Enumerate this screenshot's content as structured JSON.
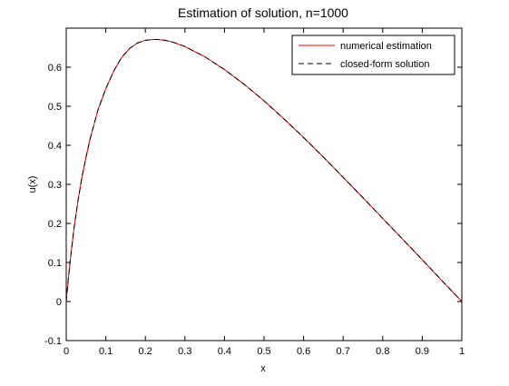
{
  "chart_data": {
    "type": "line",
    "title": "Estimation of solution, n=1000",
    "xlabel": "x",
    "ylabel": "u(x)",
    "xlim": [
      0,
      1
    ],
    "ylim": [
      -0.1,
      0.7
    ],
    "x_ticks": [
      "0",
      "0.1",
      "0.2",
      "0.3",
      "0.4",
      "0.5",
      "0.6",
      "0.7",
      "0.8",
      "0.9",
      "1"
    ],
    "y_ticks": [
      "-0.1",
      "0",
      "0.1",
      "0.2",
      "0.3",
      "0.4",
      "0.5",
      "0.6"
    ],
    "grid": false,
    "legend_position": "top-right",
    "x": [
      0,
      0.005,
      0.01,
      0.02,
      0.03,
      0.04,
      0.05,
      0.06,
      0.08,
      0.1,
      0.12,
      0.14,
      0.16,
      0.18,
      0.2,
      0.22,
      0.23,
      0.25,
      0.27,
      0.3,
      0.35,
      0.4,
      0.45,
      0.5,
      0.55,
      0.6,
      0.65,
      0.7,
      0.75,
      0.8,
      0.85,
      0.9,
      0.95,
      1.0
    ],
    "series": [
      {
        "name": "numerical estimation",
        "color": "#ff0000",
        "dash": "solid",
        "values": [
          0,
          0.055,
          0.105,
          0.19,
          0.26,
          0.32,
          0.37,
          0.415,
          0.49,
          0.545,
          0.59,
          0.625,
          0.648,
          0.662,
          0.669,
          0.671,
          0.671,
          0.669,
          0.664,
          0.653,
          0.627,
          0.594,
          0.556,
          0.514,
          0.468,
          0.42,
          0.37,
          0.318,
          0.266,
          0.213,
          0.16,
          0.107,
          0.053,
          0
        ]
      },
      {
        "name": "closed-form solution",
        "color": "#000000",
        "dash": "dashed",
        "values": [
          0,
          0.055,
          0.105,
          0.19,
          0.26,
          0.32,
          0.37,
          0.415,
          0.49,
          0.545,
          0.59,
          0.625,
          0.648,
          0.662,
          0.669,
          0.671,
          0.671,
          0.669,
          0.664,
          0.653,
          0.627,
          0.594,
          0.556,
          0.514,
          0.468,
          0.42,
          0.37,
          0.318,
          0.266,
          0.213,
          0.16,
          0.107,
          0.053,
          0
        ]
      }
    ]
  }
}
